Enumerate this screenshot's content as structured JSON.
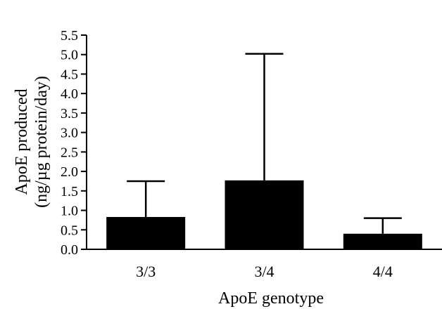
{
  "chart_data": {
    "type": "bar",
    "categories": [
      "3/3",
      "3/4",
      "4/4"
    ],
    "values": [
      0.83,
      1.77,
      0.4
    ],
    "error_bars_upper": [
      1.75,
      5.02,
      0.8
    ],
    "yticks": [
      "0.0",
      "0.5",
      "1.0",
      "1.5",
      "2.0",
      "2.5",
      "3.0",
      "3.5",
      "4.0",
      "4.5",
      "5.0",
      "5.5"
    ],
    "ylim": [
      0,
      5.5
    ],
    "xlabel": "ApoE genotype",
    "ylabel_line1": "ApoE produced",
    "ylabel_line2": "(ng/µg protein/day)",
    "grid": false,
    "legend": "none",
    "bar_color": "#000000"
  }
}
